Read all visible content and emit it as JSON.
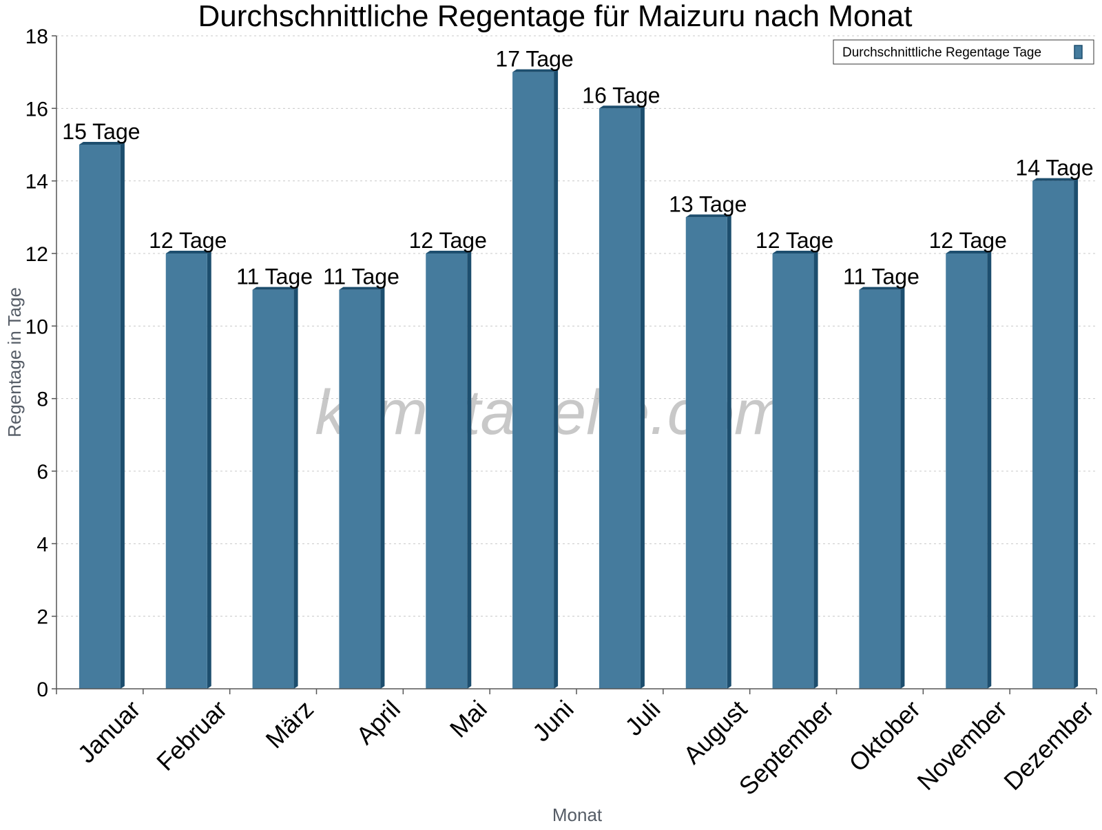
{
  "chart_data": {
    "type": "bar",
    "title": "Durchschnittliche Regentage für Maizuru nach Monat",
    "xlabel": "Monat",
    "ylabel": "Regentage in Tage",
    "ylim": [
      0,
      18
    ],
    "yticks": [
      0,
      2,
      4,
      6,
      8,
      10,
      12,
      14,
      16,
      18
    ],
    "grid": true,
    "legend_position": "top-right",
    "categories": [
      "Januar",
      "Februar",
      "März",
      "April",
      "Mai",
      "Juni",
      "Juli",
      "August",
      "September",
      "Oktober",
      "November",
      "Dezember"
    ],
    "series": [
      {
        "name": "Durchschnittliche Regentage Tage",
        "values": [
          15,
          12,
          11,
          11,
          12,
          17,
          16,
          13,
          12,
          11,
          12,
          14
        ],
        "data_labels": [
          "15 Tage",
          "12 Tage",
          "11 Tage",
          "11 Tage",
          "12 Tage",
          "17 Tage",
          "16 Tage",
          "13 Tage",
          "12 Tage",
          "11 Tage",
          "12 Tage",
          "14 Tage"
        ],
        "color": "#457b9d",
        "edge_color": "#1d4e6e"
      }
    ]
  },
  "watermark": "klimatabelle.com"
}
